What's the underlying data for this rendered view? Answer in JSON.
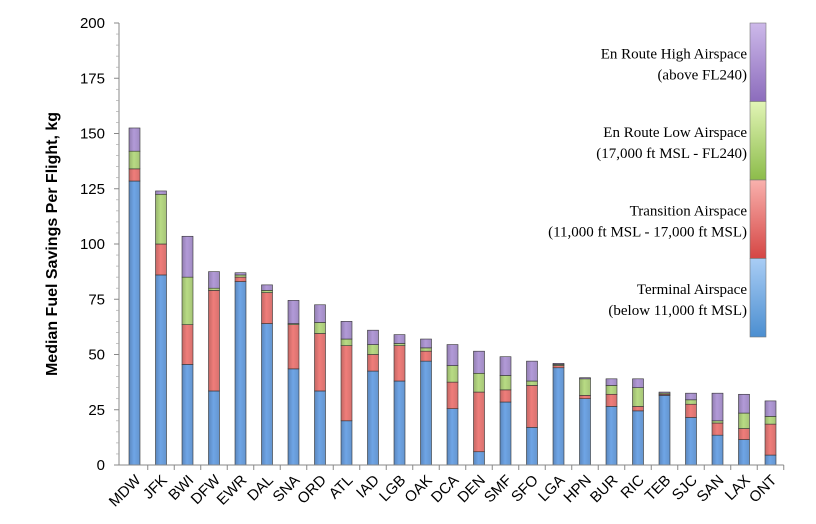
{
  "chart_data": {
    "type": "bar",
    "stacked": true,
    "ylabel": "Median Fuel Savings Per Flight, kg",
    "xlabel": "",
    "ylim": [
      0,
      200
    ],
    "yticks": [
      0,
      25,
      50,
      75,
      100,
      125,
      150,
      175,
      200
    ],
    "grid": false,
    "legend_position": "right",
    "categories": [
      "MDW",
      "JFK",
      "BWI",
      "DFW",
      "EWR",
      "DAL",
      "SNA",
      "ORD",
      "ATL",
      "IAD",
      "LGB",
      "OAK",
      "DCA",
      "DEN",
      "SMF",
      "SFO",
      "LGA",
      "HPN",
      "BUR",
      "RIC",
      "TEB",
      "SJC",
      "SAN",
      "LAX",
      "ONT"
    ],
    "series": [
      {
        "name": "Terminal Airspace (below 11,000 ft MSL)",
        "color": "#6fa5e6",
        "values": [
          128.5,
          86,
          45.5,
          33.5,
          83,
          64,
          43.5,
          33.5,
          20,
          42.5,
          38,
          47,
          25.5,
          6,
          28.5,
          17,
          44,
          30,
          26.5,
          24.5,
          31.5,
          21.5,
          13.5,
          11.5,
          4.5
        ]
      },
      {
        "name": "Transition Airspace (11,000 ft MSL - 17,000 ft MSL)",
        "color": "#ef7d7a",
        "values": [
          5.5,
          14,
          18,
          45.5,
          2,
          14,
          20,
          26,
          34,
          7.5,
          16,
          4.5,
          12,
          27,
          5.5,
          19,
          1,
          1.5,
          5.5,
          2,
          0.5,
          6,
          5.5,
          5,
          14
        ]
      },
      {
        "name": "En Route Low Airspace (17,000 ft MSL - FL240)",
        "color": "#b8db84",
        "values": [
          8,
          22.5,
          21.5,
          1,
          1,
          1,
          0.5,
          5,
          3,
          4.5,
          1,
          1.5,
          7.5,
          8.5,
          6.5,
          2,
          0.5,
          7.5,
          4,
          8.5,
          0.5,
          2,
          1,
          7,
          3.5
        ]
      },
      {
        "name": "En Route High Airspace (above FL240)",
        "color": "#b29ad8",
        "values": [
          10.5,
          1.5,
          18.5,
          7.5,
          1,
          2.5,
          10.5,
          8,
          8,
          6.5,
          4,
          4,
          9.5,
          10,
          8.5,
          9,
          0.5,
          0.5,
          3,
          4,
          0.5,
          3,
          12.5,
          8.5,
          7
        ]
      }
    ],
    "legend": [
      {
        "lines": [
          "En Route High Airspace",
          "(above FL240)"
        ],
        "color_top": "#cdb9ea",
        "color_bottom": "#8c6cbc"
      },
      {
        "lines": [
          "En Route Low Airspace",
          "(17,000 ft MSL - FL240)"
        ],
        "color_top": "#e2f5b6",
        "color_bottom": "#8cbc4a"
      },
      {
        "lines": [
          "Transition Airspace",
          "(11,000 ft MSL - 17,000 ft MSL)"
        ],
        "color_top": "#f9b1ad",
        "color_bottom": "#d54644"
      },
      {
        "lines": [
          "Terminal Airspace",
          "(below 11,000 ft MSL)"
        ],
        "color_top": "#a9cdf5",
        "color_bottom": "#4b8ed0"
      }
    ]
  }
}
